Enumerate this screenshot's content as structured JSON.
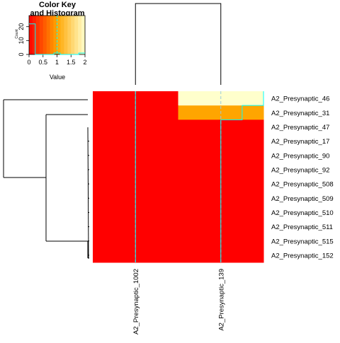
{
  "chart_data": {
    "type": "heatmap",
    "rows": [
      "A2_Presynaptic_46",
      "A2_Presynaptic_31",
      "A2_Presynaptic_47",
      "A2_Presynaptic_17",
      "A2_Presynaptic_90",
      "A2_Presynaptic_92",
      "A2_Presynaptic_508",
      "A2_Presynaptic_509",
      "A2_Presynaptic_510",
      "A2_Presynaptic_511",
      "A2_Presynaptic_515",
      "A2_Presynaptic_152"
    ],
    "columns": [
      "A2_Presynaptic_1002",
      "A2_Presynaptic_139"
    ],
    "values": [
      [
        0,
        2
      ],
      [
        0,
        1
      ],
      [
        0,
        0
      ],
      [
        0,
        0
      ],
      [
        0,
        0
      ],
      [
        0,
        0
      ],
      [
        0,
        0
      ],
      [
        0,
        0
      ],
      [
        0,
        0
      ],
      [
        0,
        0
      ],
      [
        0,
        0
      ],
      [
        0,
        0
      ]
    ],
    "color_scale": {
      "min": 0,
      "max": 2,
      "low_color": "#ff0000",
      "mid_color": "#ffa500",
      "high_color": "#ffffcc"
    },
    "trace_color": "#00ffff",
    "color_key": {
      "title": "Color Key",
      "subtitle": "and Histogram",
      "xlabel": "Value",
      "ylabel": "Count",
      "x_ticks": [
        "0",
        "0.5",
        "1",
        "1.5",
        "2"
      ],
      "y_ticks": [
        "0",
        "10",
        "20"
      ],
      "histogram_counts": [
        22,
        0,
        0,
        0,
        1,
        0,
        0,
        0,
        1
      ],
      "histogram_range": [
        0,
        2
      ],
      "count_max": 28
    }
  }
}
